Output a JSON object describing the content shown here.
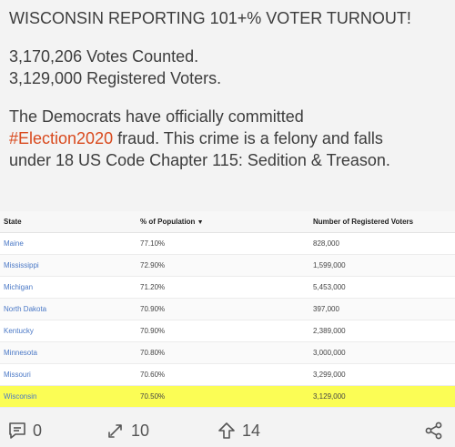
{
  "post": {
    "line1": "WISCONSIN REPORTING 101+% VOTER TURNOUT!",
    "line2": "3,170,206 Votes Counted.",
    "line3": "3,129,000 Registered Voters.",
    "line4": "The Democrats have officially committed",
    "hashtag": "#Election2020",
    "line5_rest": " fraud. This crime is a felony and falls",
    "line6": "under 18 US Code Chapter 115: Sedition & Treason."
  },
  "table": {
    "headers": [
      "State",
      "% of Population",
      "Number of Registered Voters"
    ],
    "rows": [
      {
        "state": "Maine",
        "pct": "77.10%",
        "reg": "828,000"
      },
      {
        "state": "Mississippi",
        "pct": "72.90%",
        "reg": "1,599,000"
      },
      {
        "state": "Michigan",
        "pct": "71.20%",
        "reg": "5,453,000"
      },
      {
        "state": "North Dakota",
        "pct": "70.90%",
        "reg": "397,000"
      },
      {
        "state": "Kentucky",
        "pct": "70.90%",
        "reg": "2,389,000"
      },
      {
        "state": "Minnesota",
        "pct": "70.80%",
        "reg": "3,000,000"
      },
      {
        "state": "Missouri",
        "pct": "70.60%",
        "reg": "3,299,000"
      },
      {
        "state": "Wisconsin",
        "pct": "70.50%",
        "reg": "3,129,000"
      }
    ],
    "highlight_color": "#fbfd55"
  },
  "actions": {
    "comments": "0",
    "reposts": "10",
    "upvotes": "14"
  },
  "icons": [
    "comment-icon",
    "repost-icon",
    "upvote-icon",
    "share-icon",
    "sort-down-icon"
  ]
}
